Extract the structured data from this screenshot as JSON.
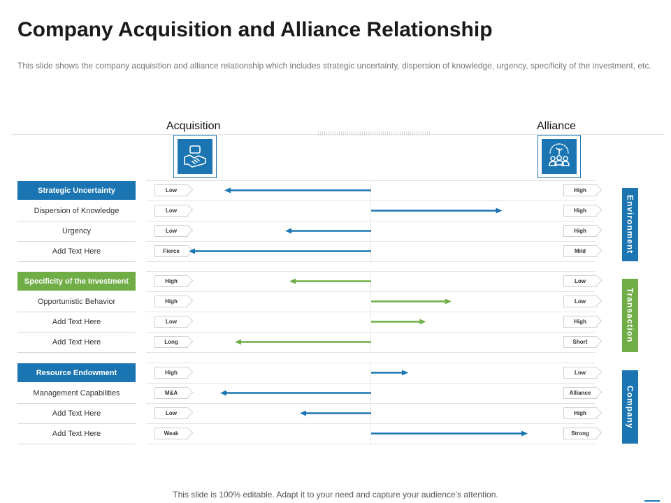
{
  "title": "Company Acquisition and Alliance Relationship",
  "subtitle": "This slide shows the company acquisition and alliance relationship which includes strategic uncertainty, dispersion of knowledge, urgency, specificity of the investment, etc.",
  "columns": {
    "left": "Acquisition",
    "right": "Alliance"
  },
  "icons": {
    "left": "handshake-icon",
    "right": "team-growth-icon"
  },
  "colors": {
    "blue": "#1a75b2",
    "green": "#70ad47"
  },
  "groups": [
    {
      "header": "Strategic Uncertainty",
      "side": "Environment",
      "color": "blue",
      "rows": [
        {
          "label": "",
          "left": "Low",
          "right": "High",
          "arrow": "left",
          "length": 0.7
        },
        {
          "label": "Dispersion of Knowledge",
          "left": "Low",
          "right": "High",
          "arrow": "right",
          "length": 0.67
        },
        {
          "label": "Urgency",
          "left": "Low",
          "right": "High",
          "arrow": "left",
          "length": 0.41
        },
        {
          "label": "Add Text Here",
          "left": "Fierce",
          "right": "Mild",
          "arrow": "left",
          "length": 0.87
        }
      ]
    },
    {
      "header": "Specificity of the Investment",
      "side": "Transaction",
      "color": "green",
      "rows": [
        {
          "label": "",
          "left": "High",
          "right": "Low",
          "arrow": "left",
          "length": 0.39
        },
        {
          "label": "Opportunistic Behavior",
          "left": "High",
          "right": "Low",
          "arrow": "right",
          "length": 0.41
        },
        {
          "label": "Add Text Here",
          "left": "Low",
          "right": "High",
          "arrow": "right",
          "length": 0.28
        },
        {
          "label": "Add Text Here",
          "left": "Long",
          "right": "Short",
          "arrow": "left",
          "length": 0.65
        }
      ]
    },
    {
      "header": "Resource Endowment",
      "side": "Company",
      "color": "blue",
      "rows": [
        {
          "label": "",
          "left": "High",
          "right": "Low",
          "arrow": "right",
          "length": 0.19
        },
        {
          "label": "Management Capabilities",
          "left": "M&A",
          "right": "Alliance",
          "arrow": "left",
          "length": 0.72
        },
        {
          "label": "Add Text Here",
          "left": "Low",
          "right": "High",
          "arrow": "left",
          "length": 0.34
        },
        {
          "label": "Add Text Here",
          "left": "Weak",
          "right": "Strong",
          "arrow": "right",
          "length": 0.8
        }
      ]
    }
  ],
  "footer": "This slide is 100% editable. Adapt it to your need and capture your audience’s attention."
}
